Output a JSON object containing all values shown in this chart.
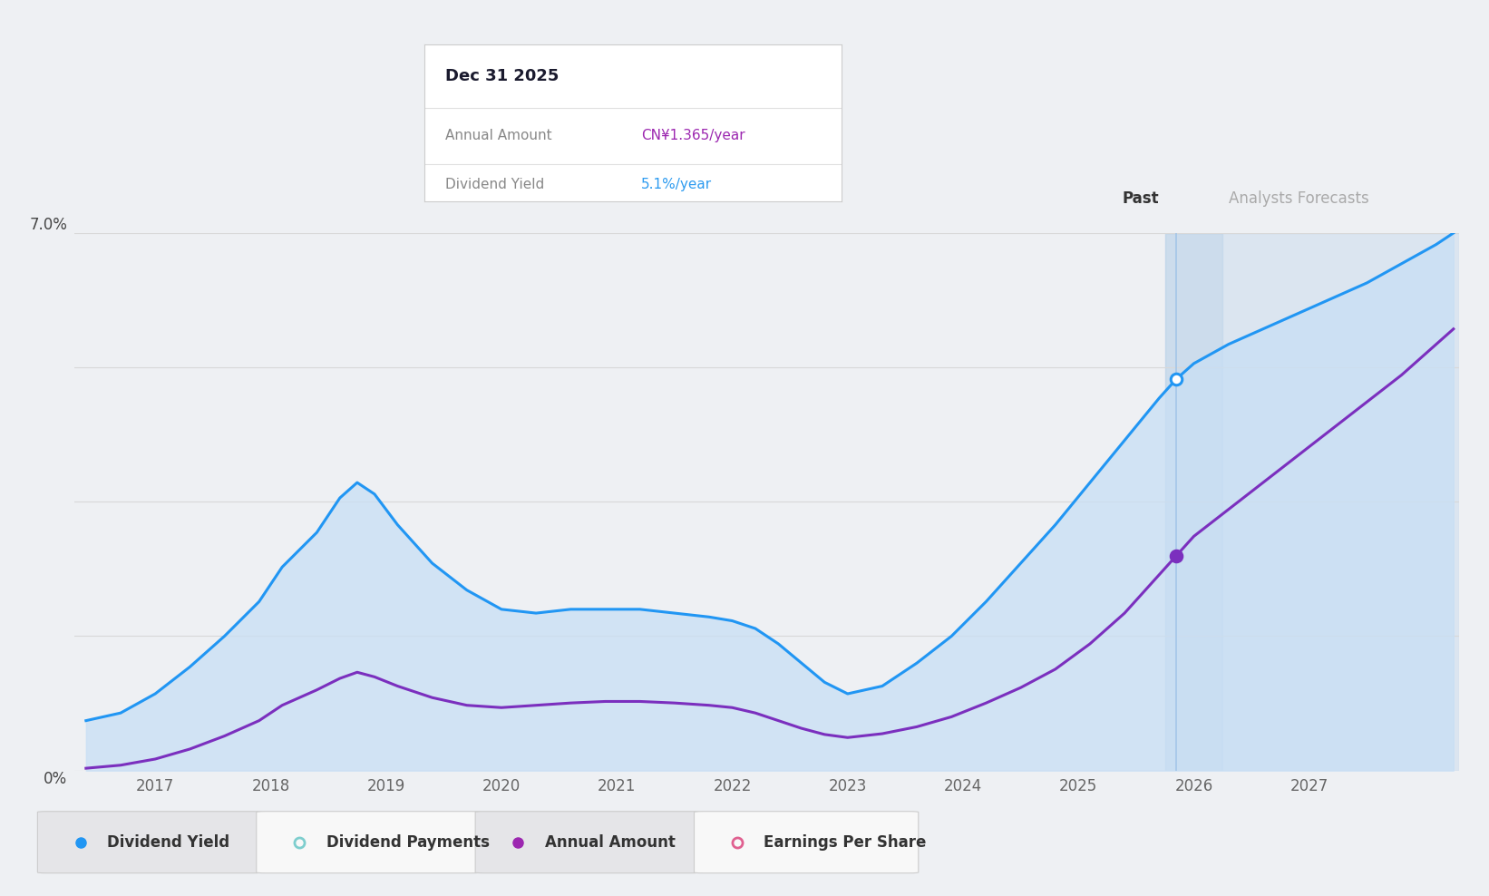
{
  "background_color": "#eef0f3",
  "chart_bg": "#eef0f3",
  "ylim": [
    0,
    7.0
  ],
  "xmin": 2016.3,
  "xmax": 2028.3,
  "past_boundary_x": 2025.75,
  "forecast_band_start": 2025.75,
  "forecast_band_end": 2026.25,
  "blue_line_color": "#2196f3",
  "blue_fill_color": "#c8dff5",
  "purple_line_color": "#7b2fbe",
  "grid_color": "#d8d8d8",
  "grid_levels": [
    0,
    1.75,
    3.5,
    5.25,
    7.0
  ],
  "tooltip_title": "Dec 31 2025",
  "tooltip_annual_label": "Annual Amount",
  "tooltip_annual_value": "CN¥1.365/year",
  "tooltip_annual_color": "#9c27b0",
  "tooltip_yield_label": "Dividend Yield",
  "tooltip_yield_value": "5.1%/year",
  "tooltip_yield_color": "#2d9bf0",
  "past_label": "Past",
  "forecast_label": "Analysts Forecasts",
  "legend_items": [
    {
      "label": "Dividend Yield",
      "color": "#2196f3",
      "filled": true
    },
    {
      "label": "Dividend Payments",
      "color": "#7ecece",
      "filled": false
    },
    {
      "label": "Annual Amount",
      "color": "#9c27b0",
      "filled": true
    },
    {
      "label": "Earnings Per Share",
      "color": "#e06090",
      "filled": false
    }
  ],
  "blue_x": [
    2016.4,
    2016.7,
    2017.0,
    2017.3,
    2017.6,
    2017.9,
    2018.1,
    2018.4,
    2018.6,
    2018.75,
    2018.9,
    2019.1,
    2019.4,
    2019.7,
    2020.0,
    2020.3,
    2020.6,
    2020.9,
    2021.2,
    2021.5,
    2021.8,
    2022.0,
    2022.2,
    2022.4,
    2022.6,
    2022.8,
    2023.0,
    2023.3,
    2023.6,
    2023.9,
    2024.2,
    2024.5,
    2024.8,
    2025.1,
    2025.4,
    2025.7,
    2025.85,
    2026.0,
    2026.3,
    2026.6,
    2026.9,
    2027.2,
    2027.5,
    2027.8,
    2028.1,
    2028.25
  ],
  "blue_y": [
    0.65,
    0.75,
    1.0,
    1.35,
    1.75,
    2.2,
    2.65,
    3.1,
    3.55,
    3.75,
    3.6,
    3.2,
    2.7,
    2.35,
    2.1,
    2.05,
    2.1,
    2.1,
    2.1,
    2.05,
    2.0,
    1.95,
    1.85,
    1.65,
    1.4,
    1.15,
    1.0,
    1.1,
    1.4,
    1.75,
    2.2,
    2.7,
    3.2,
    3.75,
    4.3,
    4.85,
    5.1,
    5.3,
    5.55,
    5.75,
    5.95,
    6.15,
    6.35,
    6.6,
    6.85,
    7.0
  ],
  "purple_x": [
    2016.4,
    2016.7,
    2017.0,
    2017.3,
    2017.6,
    2017.9,
    2018.1,
    2018.4,
    2018.6,
    2018.75,
    2018.9,
    2019.1,
    2019.4,
    2019.7,
    2020.0,
    2020.3,
    2020.6,
    2020.9,
    2021.2,
    2021.5,
    2021.8,
    2022.0,
    2022.2,
    2022.4,
    2022.6,
    2022.8,
    2023.0,
    2023.3,
    2023.6,
    2023.9,
    2024.2,
    2024.5,
    2024.8,
    2025.1,
    2025.4,
    2025.7,
    2025.85,
    2026.0,
    2026.3,
    2026.6,
    2026.9,
    2027.2,
    2027.5,
    2027.8,
    2028.1,
    2028.25
  ],
  "purple_y": [
    0.03,
    0.07,
    0.15,
    0.28,
    0.45,
    0.65,
    0.85,
    1.05,
    1.2,
    1.28,
    1.22,
    1.1,
    0.95,
    0.85,
    0.82,
    0.85,
    0.88,
    0.9,
    0.9,
    0.88,
    0.85,
    0.82,
    0.75,
    0.65,
    0.55,
    0.47,
    0.43,
    0.48,
    0.57,
    0.7,
    0.88,
    1.08,
    1.32,
    1.65,
    2.05,
    2.55,
    2.8,
    3.05,
    3.4,
    3.75,
    4.1,
    4.45,
    4.8,
    5.15,
    5.55,
    5.75
  ],
  "dot_blue_x": 2025.85,
  "dot_blue_y": 5.1,
  "dot_purple_x": 2025.85,
  "dot_purple_y": 2.8,
  "tooltip_line_x": 2025.85,
  "xtick_years": [
    2017,
    2018,
    2019,
    2020,
    2021,
    2022,
    2023,
    2024,
    2025,
    2026,
    2027
  ]
}
